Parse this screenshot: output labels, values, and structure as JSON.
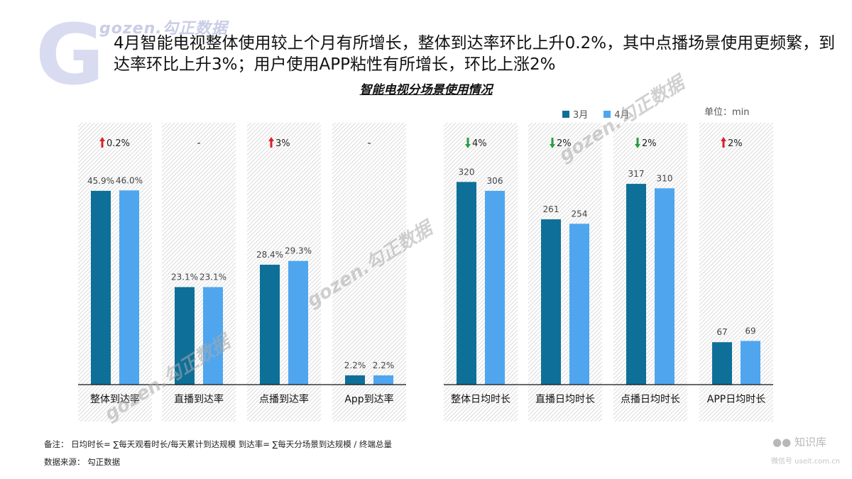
{
  "watermark": {
    "logo_letter": "G",
    "brand": "gozen.勾正数据"
  },
  "headline": "4月智能电视整体使用较上个月有所增长，整体到达率环比上升0.2%，其中点播场景使用更频繁，到达率环比上升3%；用户使用APP粘性有所增长，环比上涨2%",
  "legend": {
    "march": "3月",
    "april": "4月"
  },
  "unit": "单位：min",
  "notes": {
    "definition": "备注：  日均时长= ∑每天观看时长/每天累计到达规模    到达率= ∑每天分场景到达规模 / 终端总量",
    "source": "数据来源：  勾正数据"
  },
  "wechat": {
    "name": "知识库",
    "sub": "微信号 useit.com.cn"
  },
  "colors": {
    "march": "#0e7098",
    "april": "#4fa6ee",
    "up": "#d6222a",
    "down": "#2a9b43",
    "hatch": "#9a9a9a",
    "axis": "#111111",
    "text": "#444444"
  },
  "chart_data": {
    "type": "bar",
    "title": "智能电视分场景使用情况",
    "series_names": [
      "3月",
      "4月"
    ],
    "groups": [
      {
        "name": "到达率",
        "ylim": [
          0,
          60
        ],
        "categories": [
          "整体到达率",
          "直播到达率",
          "点播到达率",
          "App到达率"
        ],
        "series": [
          {
            "name": "3月",
            "values": [
              45.9,
              23.1,
              28.4,
              2.2
            ],
            "labels": [
              "45.9%",
              "23.1%",
              "28.4%",
              "2.2%"
            ]
          },
          {
            "name": "4月",
            "values": [
              46.0,
              23.1,
              29.3,
              2.2
            ],
            "labels": [
              "46.0%",
              "23.1%",
              "29.3%",
              "2.2%"
            ]
          }
        ],
        "changes": [
          {
            "text": "0.2%",
            "dir": "up"
          },
          {
            "text": "-",
            "dir": "none"
          },
          {
            "text": "3%",
            "dir": "up"
          },
          {
            "text": "-",
            "dir": "none"
          }
        ]
      },
      {
        "name": "日均时长",
        "ylim": [
          0,
          400
        ],
        "categories": [
          "整体日均时长",
          "直播日均时长",
          "点播日均时长",
          "APP日均时长"
        ],
        "series": [
          {
            "name": "3月",
            "values": [
              320,
              261,
              317,
              67
            ],
            "labels": [
              "320",
              "261",
              "317",
              "67"
            ]
          },
          {
            "name": "4月",
            "values": [
              306,
              254,
              310,
              69
            ],
            "labels": [
              "306",
              "254",
              "310",
              "69"
            ]
          }
        ],
        "changes": [
          {
            "text": "4%",
            "dir": "down"
          },
          {
            "text": "2%",
            "dir": "down"
          },
          {
            "text": "2%",
            "dir": "down"
          },
          {
            "text": "2%",
            "dir": "up"
          }
        ]
      }
    ]
  }
}
